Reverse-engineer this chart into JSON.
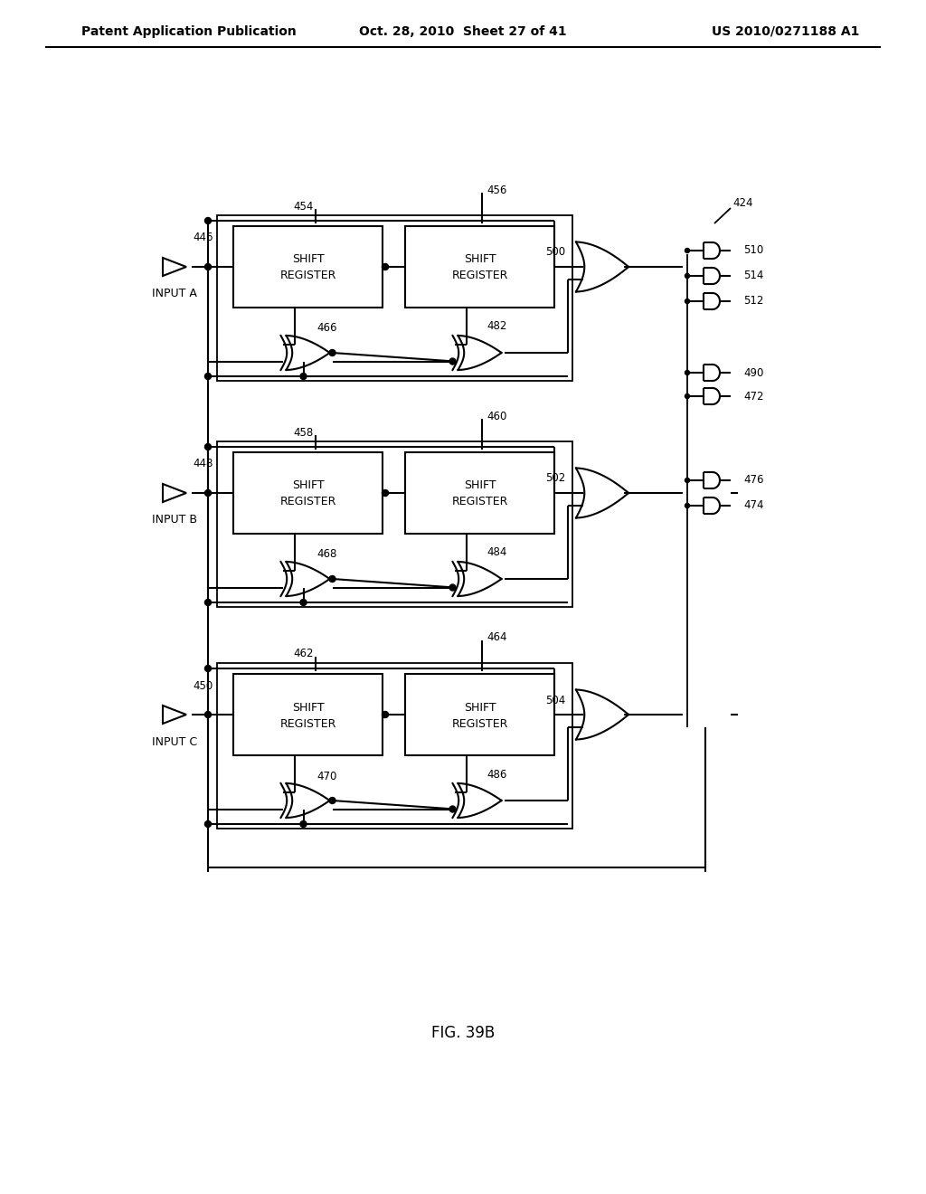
{
  "title_left": "Patent Application Publication",
  "title_center": "Oct. 28, 2010  Sheet 27 of 41",
  "title_right": "US 2010/0271188 A1",
  "fig_label": "FIG. 39B",
  "background": "#ffffff",
  "line_color": "#000000",
  "text_color": "#000000",
  "rows": [
    {
      "buf_label": "446",
      "input_label": "INPUT A",
      "sr1_label": "454",
      "sr2_label": "456",
      "or_label": "500",
      "xor1_label": "466",
      "xor2_label": "482"
    },
    {
      "buf_label": "448",
      "input_label": "INPUT B",
      "sr1_label": "458",
      "sr2_label": "460",
      "or_label": "502",
      "xor1_label": "468",
      "xor2_label": "484"
    },
    {
      "buf_label": "450",
      "input_label": "INPUT C",
      "sr1_label": "462",
      "sr2_label": "464",
      "or_label": "504",
      "xor1_label": "470",
      "xor2_label": "486"
    }
  ],
  "right_outputs": [
    "510",
    "514",
    "512",
    "490",
    "472",
    "476",
    "474"
  ],
  "label_424": "424"
}
